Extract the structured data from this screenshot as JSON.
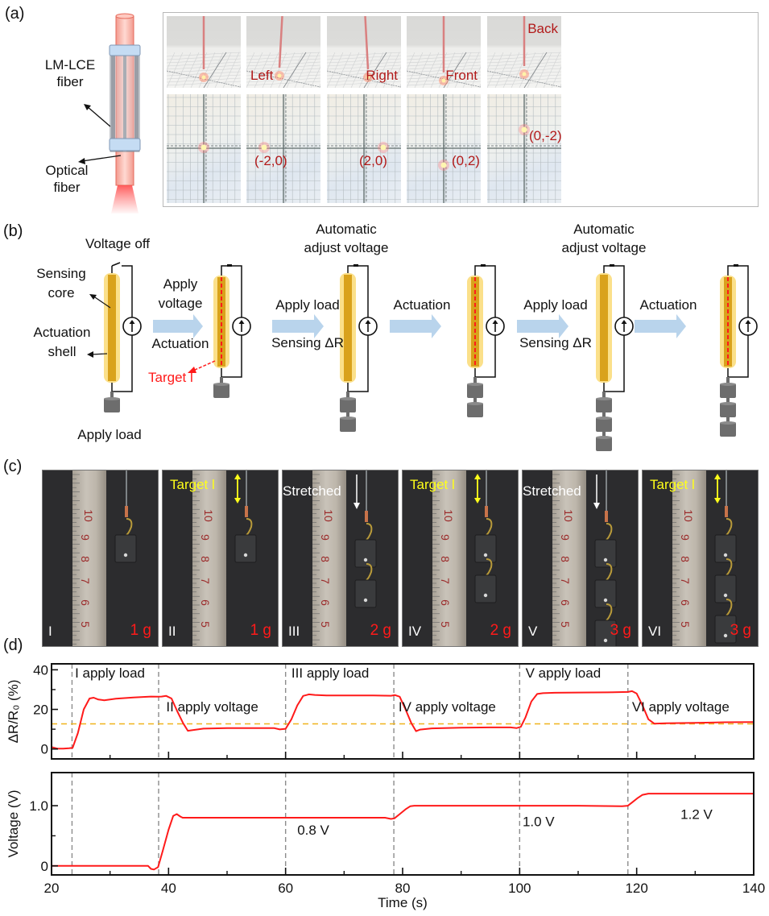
{
  "panels": {
    "a": "(a)",
    "b": "(b)",
    "c": "(c)",
    "d": "(d)"
  },
  "panel_a": {
    "schematic_labels": {
      "lm_lce": "LM-LCE\nfiber",
      "lm_lce_line1": "LM-LCE",
      "lm_lce_line2": "fiber",
      "optical_line1": "Optical",
      "optical_line2": "fiber"
    },
    "top_row_labels": [
      "",
      "Left",
      "Right",
      "Front",
      "Back"
    ],
    "bottom_row_coords": [
      "",
      "(-2,0)",
      "(2,0)",
      "(0,2)",
      "(0,-2)"
    ],
    "spot_positions": [
      [
        0,
        0
      ],
      [
        -2,
        0
      ],
      [
        2,
        0
      ],
      [
        0,
        2
      ],
      [
        0,
        -2
      ]
    ],
    "label_color": "#b21a1a"
  },
  "panel_b": {
    "voltage_off": "Voltage off",
    "sensing_core_1": "Sensing",
    "sensing_core_2": "core",
    "actuation_shell_1": "Actuation",
    "actuation_shell_2": "shell",
    "apply_load_bottom": "Apply load",
    "target_l": "Target l",
    "steps": [
      {
        "top1": "Apply",
        "top2": "voltage",
        "bottom": "Actuation"
      },
      {
        "top1": "Apply load",
        "top2": "",
        "bottom": "Sensing ΔR"
      },
      {
        "top1": "Actuation",
        "top2": "",
        "bottom": ""
      },
      {
        "top1": "Apply load",
        "top2": "",
        "bottom": "Sensing ΔR"
      },
      {
        "top1": "Actuation",
        "top2": "",
        "bottom": ""
      }
    ],
    "auto_adjust_1": "Automatic",
    "auto_adjust_2": "adjust voltage",
    "fiber_weights": [
      1,
      1,
      2,
      2,
      3,
      3
    ],
    "fiber_actuated": [
      false,
      true,
      false,
      true,
      false,
      true
    ],
    "colors": {
      "shell": "#fbe08a",
      "core": "#d9a21c",
      "arrow": "#b9d4ec",
      "target": "#ff1a1a",
      "weight": "#6d6d6d"
    }
  },
  "panel_c": {
    "photos": [
      {
        "roman": "I",
        "mass": "1 g",
        "annotation": "",
        "type": "none"
      },
      {
        "roman": "II",
        "mass": "1 g",
        "annotation": "Target l",
        "type": "target"
      },
      {
        "roman": "III",
        "mass": "2 g",
        "annotation": "Stretched",
        "type": "stretched"
      },
      {
        "roman": "IV",
        "mass": "2 g",
        "annotation": "Target l",
        "type": "target"
      },
      {
        "roman": "V",
        "mass": "3 g",
        "annotation": "Stretched",
        "type": "stretched"
      },
      {
        "roman": "VI",
        "mass": "3 g",
        "annotation": "Target l",
        "type": "target"
      }
    ],
    "ruler_numbers": [
      "10",
      "9",
      "8",
      "7",
      "6",
      "5"
    ],
    "weights": [
      1,
      1,
      2,
      2,
      3,
      3
    ]
  },
  "chart_data": [
    {
      "type": "line",
      "title": "",
      "ylabel": "ΔR/R₀ (%)",
      "xlabel": "",
      "xlim": [
        20,
        140
      ],
      "ylim": [
        -5,
        43
      ],
      "yticks": [
        0,
        20,
        40
      ],
      "yminor": [
        10,
        30
      ],
      "series": [
        {
          "name": "ΔR/R0",
          "color": "#ff1a1a",
          "x": [
            20,
            21,
            22,
            23,
            23.6,
            24.5,
            25.5,
            26.5,
            27.2,
            28,
            29,
            31,
            34,
            37,
            38,
            38.8,
            39.6,
            40.5,
            41.5,
            42.5,
            43.3,
            44,
            46,
            50,
            55,
            58,
            59,
            60,
            61,
            62,
            63,
            64,
            65,
            67,
            70,
            75,
            78,
            78.7,
            79.5,
            80.5,
            81.5,
            82.3,
            83,
            85,
            90,
            95,
            98.5,
            99.5,
            100.2,
            101,
            102,
            103,
            104,
            106,
            110,
            115,
            118.5,
            119.2,
            120,
            121,
            122,
            123,
            125,
            130,
            135,
            140
          ],
          "y": [
            1,
            0.2,
            0.2,
            0.4,
            0.6,
            8,
            20,
            25.5,
            25.9,
            25,
            24.6,
            25.4,
            26,
            26.5,
            26.4,
            26.5,
            26.8,
            25.5,
            19,
            13,
            9.2,
            9.5,
            10.3,
            10.6,
            10.6,
            10.6,
            9.9,
            10.2,
            15,
            22,
            26.8,
            27.6,
            27.3,
            27,
            27,
            27,
            26.9,
            27.2,
            26.4,
            20,
            13,
            9,
            9.8,
            10.4,
            10.8,
            10.9,
            10.9,
            10.6,
            11.2,
            16,
            24,
            27.8,
            28.2,
            28.4,
            28.5,
            28.6,
            28.8,
            29.2,
            28,
            22,
            15,
            12.8,
            13,
            13.2,
            13.5,
            13.6
          ]
        }
      ],
      "hlines": [
        {
          "y": 12.7,
          "color": "#f0b41c",
          "style": "dashed"
        }
      ],
      "vlines": [
        23.5,
        38.3,
        60,
        78.5,
        100,
        118.5
      ],
      "annotations": [
        {
          "text": "I apply load",
          "x": 24,
          "y": 36
        },
        {
          "text": "II apply voltage",
          "x": 39.6,
          "y": 19
        },
        {
          "text": "III apply load",
          "x": 61,
          "y": 36
        },
        {
          "text": "IV apply voltage",
          "x": 79.3,
          "y": 19
        },
        {
          "text": "V apply load",
          "x": 101,
          "y": 36
        },
        {
          "text": "VI apply voltage",
          "x": 119.2,
          "y": 19
        }
      ]
    },
    {
      "type": "line",
      "title": "",
      "ylabel": "Voltage (V)",
      "xlabel": "Time (s)",
      "xlim": [
        20,
        140
      ],
      "ylim": [
        -0.15,
        1.55
      ],
      "yticks": [
        0,
        1.0
      ],
      "ytick_labels": [
        "0",
        "1.0"
      ],
      "yminor": [
        0.5
      ],
      "xticks": [
        20,
        40,
        60,
        80,
        100,
        120,
        140
      ],
      "xtick_labels": [
        "20",
        "40",
        "60",
        "80",
        "100",
        "120",
        "140"
      ],
      "xminor": [
        30,
        50,
        70,
        90,
        110,
        130
      ],
      "series": [
        {
          "name": "Voltage",
          "color": "#ff1a1a",
          "x": [
            20,
            25,
            30,
            35,
            36.5,
            37,
            37.5,
            38.2,
            39,
            40,
            40.8,
            41.4,
            42,
            42.4,
            45,
            55,
            65,
            75,
            77,
            78,
            78.6,
            79.5,
            80.5,
            81.3,
            82,
            90,
            100,
            110,
            117.5,
            118.5,
            119.3,
            120.2,
            121,
            122,
            123,
            130,
            140
          ],
          "y": [
            0,
            0,
            0,
            0,
            0,
            -0.05,
            -0.06,
            -0.02,
            0.25,
            0.6,
            0.83,
            0.86,
            0.82,
            0.8,
            0.8,
            0.8,
            0.8,
            0.8,
            0.8,
            0.78,
            0.79,
            0.86,
            0.94,
            0.99,
            1.0,
            1.0,
            1.0,
            1.0,
            0.99,
            1.0,
            1.06,
            1.13,
            1.18,
            1.2,
            1.2,
            1.2,
            1.2
          ]
        }
      ],
      "vlines": [
        23.5,
        38.3,
        60,
        78.5,
        100,
        118.5
      ],
      "annotations": [
        {
          "text": "0.8 V",
          "x": 62,
          "y": 0.52
        },
        {
          "text": "1.0 V",
          "x": 100.5,
          "y": 0.66
        },
        {
          "text": "1.2 V",
          "x": 127.5,
          "y": 0.78
        }
      ]
    }
  ]
}
